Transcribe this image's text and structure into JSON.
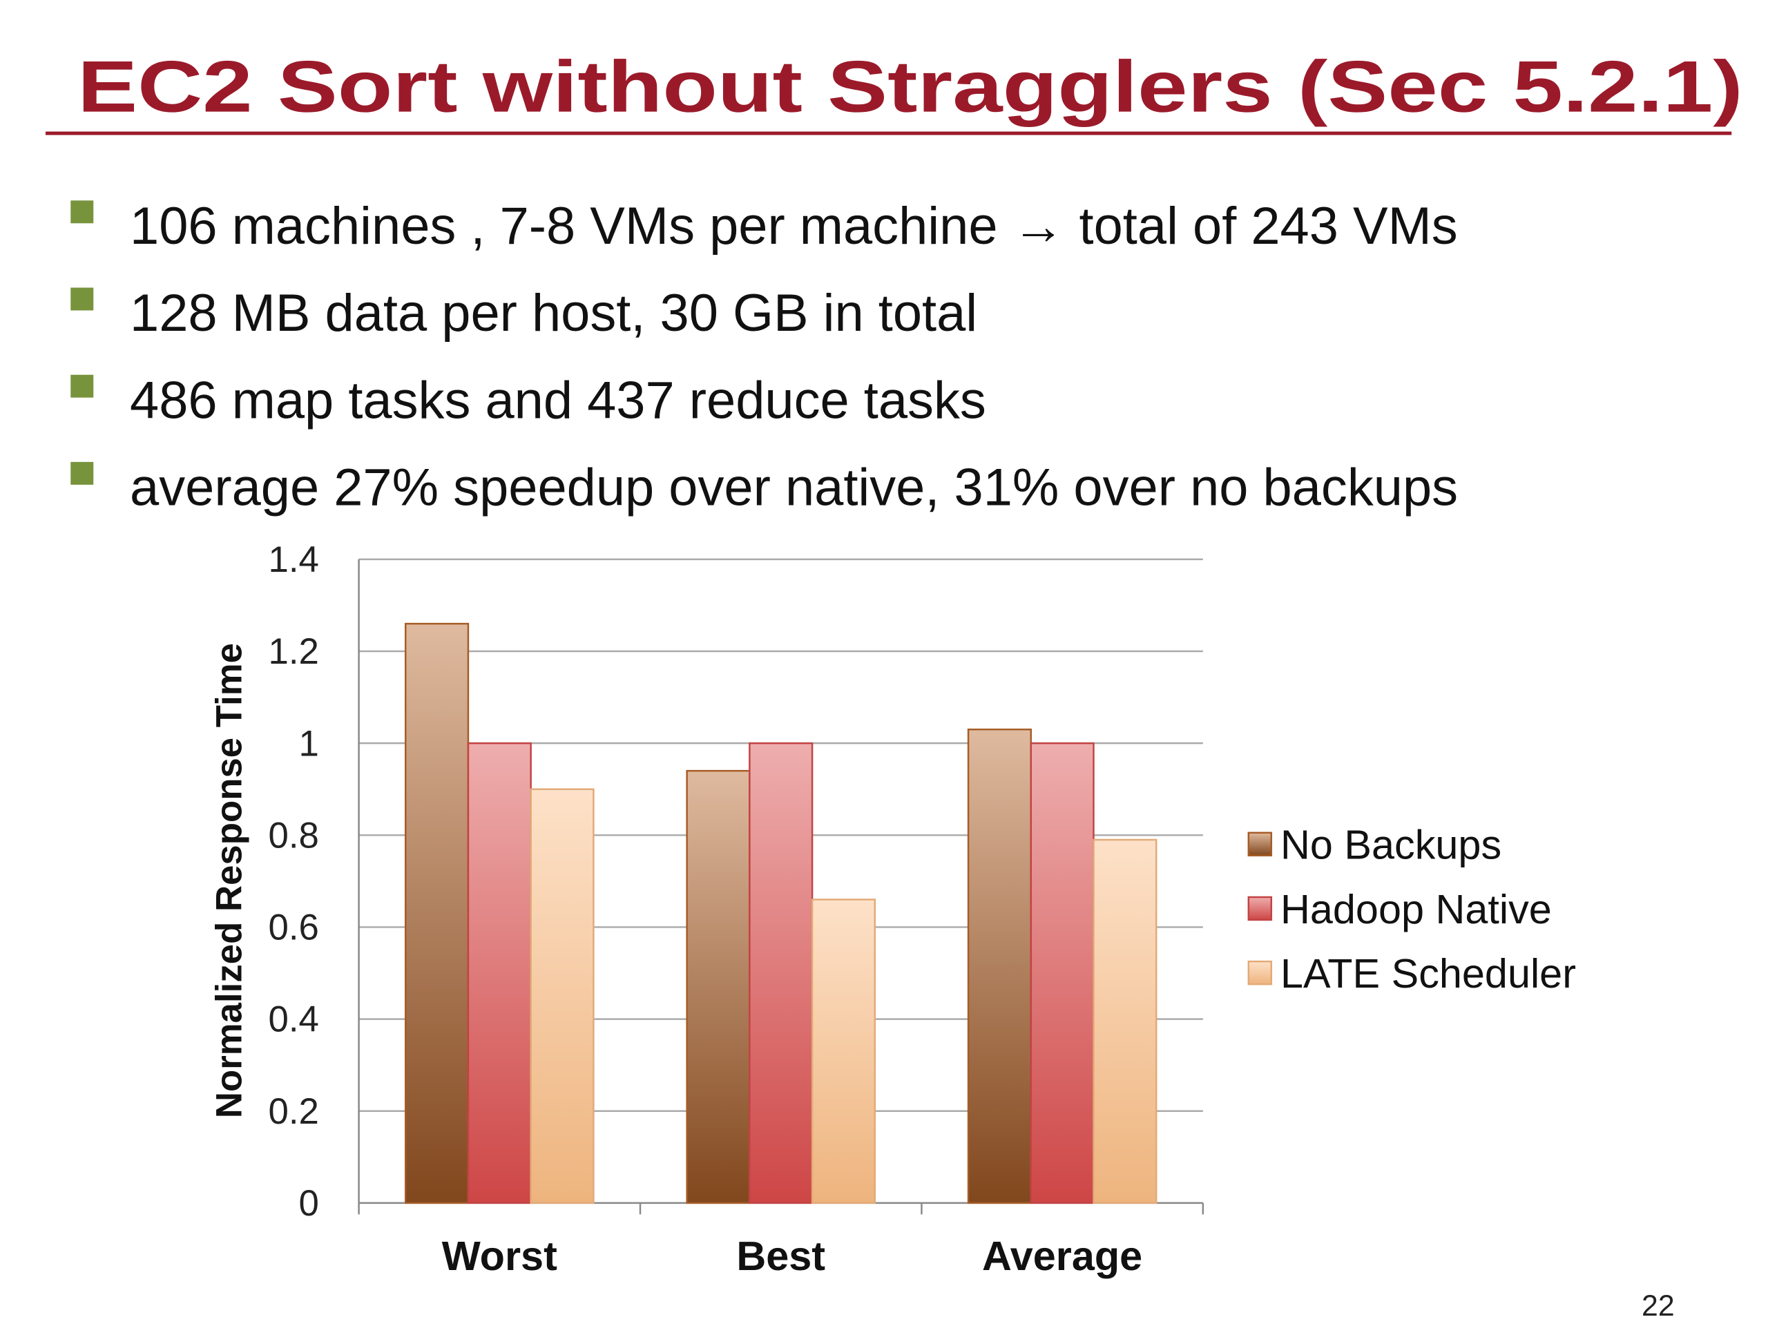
{
  "title": "EC2 Sort without Stragglers (Sec 5.2.1)",
  "bullets": [
    "106 machines , 7-8 VMs per machine → total of 243 VMs",
    "128 MB data per host, 30 GB in total",
    "486 map tasks and 437 reduce tasks",
    "average 27% speedup over native, 31% over no backups"
  ],
  "chart_data": {
    "type": "bar",
    "y_label": "Normalized Response Time",
    "categories": [
      "Worst",
      "Best",
      "Average"
    ],
    "series": [
      {
        "name": "No Backups",
        "color": "#b8662a",
        "values": [
          1.26,
          0.94,
          1.03
        ]
      },
      {
        "name": "Hadoop Native",
        "color": "#d94a4a",
        "values": [
          1,
          1,
          1
        ]
      },
      {
        "name": "LATE Scheduler",
        "color": "#fbbd85",
        "values": [
          0.9,
          0.66,
          0.79
        ]
      }
    ],
    "ylim": [
      0,
      1.4
    ],
    "yticks": [
      0,
      0.2,
      0.4,
      0.6,
      0.8,
      1,
      1.2,
      1.4
    ],
    "grid": true,
    "legend": "right"
  },
  "page_number": 22
}
